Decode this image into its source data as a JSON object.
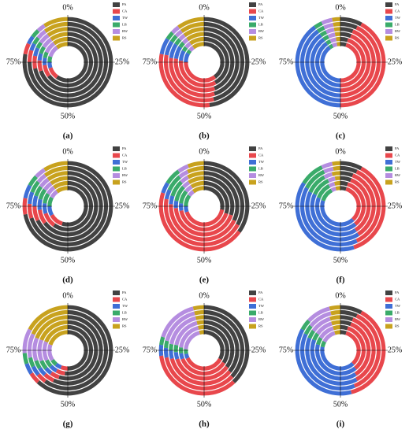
{
  "chart_data": [
    {
      "type": "radial",
      "title": "(a)",
      "anglelim": [
        0,
        100
      ],
      "angleticks": [
        {
          "value": 0,
          "label": "0%"
        },
        {
          "value": 25,
          "label": "25%"
        },
        {
          "value": 50,
          "label": "50%"
        },
        {
          "value": 75,
          "label": "75%"
        }
      ],
      "series": [
        {
          "name": "PA",
          "color": "#424242",
          "values": [
            60,
            65,
            70,
            72,
            75,
            78
          ]
        },
        {
          "name": "CA",
          "color": "#e8474c",
          "values": [
            10,
            8,
            6,
            6,
            5,
            4
          ]
        },
        {
          "name": "TW",
          "color": "#3f6fd6",
          "values": [
            5,
            5,
            4,
            4,
            3,
            3
          ]
        },
        {
          "name": "LB",
          "color": "#3aab6a",
          "values": [
            5,
            4,
            4,
            3,
            3,
            3
          ]
        },
        {
          "name": "RW",
          "color": "#b58de0",
          "values": [
            10,
            8,
            6,
            5,
            4,
            3
          ]
        },
        {
          "name": "RS",
          "color": "#c8a21e",
          "values": [
            10,
            10,
            10,
            10,
            10,
            9
          ]
        }
      ]
    },
    {
      "type": "radial",
      "title": "(b)",
      "anglelim": [
        0,
        100
      ],
      "angleticks": [
        {
          "value": 0,
          "label": "0%"
        },
        {
          "value": 25,
          "label": "25%"
        },
        {
          "value": 50,
          "label": "50%"
        },
        {
          "value": 75,
          "label": "75%"
        }
      ],
      "series": [
        {
          "name": "PA",
          "color": "#424242",
          "values": [
            40,
            42,
            44,
            45,
            46,
            48
          ]
        },
        {
          "name": "CA",
          "color": "#e8474c",
          "values": [
            35,
            34,
            33,
            32,
            32,
            30
          ]
        },
        {
          "name": "TW",
          "color": "#3f6fd6",
          "values": [
            8,
            7,
            7,
            7,
            6,
            6
          ]
        },
        {
          "name": "LB",
          "color": "#3aab6a",
          "values": [
            3,
            3,
            3,
            3,
            3,
            3
          ]
        },
        {
          "name": "RW",
          "color": "#b58de0",
          "values": [
            4,
            4,
            3,
            3,
            3,
            3
          ]
        },
        {
          "name": "RS",
          "color": "#c8a21e",
          "values": [
            10,
            10,
            10,
            10,
            10,
            10
          ]
        }
      ]
    },
    {
      "type": "radial",
      "title": "(c)",
      "anglelim": [
        0,
        100
      ],
      "angleticks": [
        {
          "value": 0,
          "label": "0%"
        },
        {
          "value": 25,
          "label": "25%"
        },
        {
          "value": 50,
          "label": "50%"
        },
        {
          "value": 75,
          "label": "75%"
        }
      ],
      "series": [
        {
          "name": "PA",
          "color": "#424242",
          "values": [
            5,
            5,
            6,
            6,
            7,
            8
          ]
        },
        {
          "name": "CA",
          "color": "#e8474c",
          "values": [
            45,
            45,
            44,
            44,
            43,
            42
          ]
        },
        {
          "name": "TW",
          "color": "#3f6fd6",
          "values": [
            40,
            40,
            40,
            40,
            40,
            40
          ]
        },
        {
          "name": "LB",
          "color": "#3aab6a",
          "values": [
            3,
            3,
            3,
            3,
            3,
            3
          ]
        },
        {
          "name": "RW",
          "color": "#b58de0",
          "values": [
            4,
            4,
            4,
            4,
            4,
            4
          ]
        },
        {
          "name": "RS",
          "color": "#c8a21e",
          "values": [
            3,
            3,
            3,
            3,
            3,
            3
          ]
        }
      ]
    },
    {
      "type": "radial",
      "title": "(d)",
      "anglelim": [
        0,
        100
      ],
      "angleticks": [
        {
          "value": 0,
          "label": "0%"
        },
        {
          "value": 25,
          "label": "25%"
        },
        {
          "value": 50,
          "label": "50%"
        },
        {
          "value": 75,
          "label": "75%"
        }
      ],
      "series": [
        {
          "name": "PA",
          "color": "#424242",
          "values": [
            55,
            60,
            65,
            68,
            70,
            72
          ]
        },
        {
          "name": "CA",
          "color": "#e8474c",
          "values": [
            12,
            10,
            8,
            7,
            6,
            6
          ]
        },
        {
          "name": "TW",
          "color": "#3f6fd6",
          "values": [
            8,
            7,
            6,
            5,
            5,
            5
          ]
        },
        {
          "name": "LB",
          "color": "#3aab6a",
          "values": [
            8,
            7,
            6,
            5,
            5,
            4
          ]
        },
        {
          "name": "RW",
          "color": "#b58de0",
          "values": [
            7,
            6,
            5,
            5,
            4,
            4
          ]
        },
        {
          "name": "RS",
          "color": "#c8a21e",
          "values": [
            10,
            10,
            10,
            10,
            10,
            9
          ]
        }
      ]
    },
    {
      "type": "radial",
      "title": "(e)",
      "anglelim": [
        0,
        100
      ],
      "angleticks": [
        {
          "value": 0,
          "label": "0%"
        },
        {
          "value": 25,
          "label": "25%"
        },
        {
          "value": 50,
          "label": "50%"
        },
        {
          "value": 75,
          "label": "75%"
        }
      ],
      "series": [
        {
          "name": "PA",
          "color": "#424242",
          "values": [
            28,
            30,
            30,
            32,
            33,
            35
          ]
        },
        {
          "name": "CA",
          "color": "#e8474c",
          "values": [
            42,
            42,
            44,
            44,
            45,
            45
          ]
        },
        {
          "name": "TW",
          "color": "#3f6fd6",
          "values": [
            5,
            5,
            4,
            4,
            4,
            4
          ]
        },
        {
          "name": "LB",
          "color": "#3aab6a",
          "values": [
            10,
            9,
            9,
            8,
            7,
            6
          ]
        },
        {
          "name": "RW",
          "color": "#b58de0",
          "values": [
            5,
            5,
            4,
            4,
            4,
            4
          ]
        },
        {
          "name": "RS",
          "color": "#c8a21e",
          "values": [
            10,
            9,
            9,
            8,
            7,
            6
          ]
        }
      ]
    },
    {
      "type": "radial",
      "title": "(f)",
      "anglelim": [
        0,
        100
      ],
      "angleticks": [
        {
          "value": 0,
          "label": "0%"
        },
        {
          "value": 25,
          "label": "25%"
        },
        {
          "value": 50,
          "label": "50%"
        },
        {
          "value": 75,
          "label": "75%"
        }
      ],
      "series": [
        {
          "name": "PA",
          "color": "#424242",
          "values": [
            5,
            5,
            6,
            6,
            7,
            8
          ]
        },
        {
          "name": "CA",
          "color": "#e8474c",
          "values": [
            33,
            34,
            35,
            35,
            36,
            37
          ]
        },
        {
          "name": "TW",
          "color": "#3f6fd6",
          "values": [
            42,
            42,
            41,
            41,
            40,
            39
          ]
        },
        {
          "name": "LB",
          "color": "#3aab6a",
          "values": [
            12,
            11,
            11,
            10,
            10,
            9
          ]
        },
        {
          "name": "RW",
          "color": "#b58de0",
          "values": [
            4,
            4,
            4,
            4,
            4,
            4
          ]
        },
        {
          "name": "RS",
          "color": "#c8a21e",
          "values": [
            4,
            4,
            3,
            4,
            3,
            3
          ]
        }
      ]
    },
    {
      "type": "radial",
      "title": "(g)",
      "anglelim": [
        0,
        100
      ],
      "angleticks": [
        {
          "value": 0,
          "label": "0%"
        },
        {
          "value": 25,
          "label": "25%"
        },
        {
          "value": 50,
          "label": "50%"
        },
        {
          "value": 75,
          "label": "75%"
        }
      ],
      "series": [
        {
          "name": "PA",
          "color": "#424242",
          "values": [
            50,
            52,
            55,
            57,
            60,
            62
          ]
        },
        {
          "name": "CA",
          "color": "#e8474c",
          "values": [
            6,
            6,
            5,
            5,
            4,
            4
          ]
        },
        {
          "name": "TW",
          "color": "#3f6fd6",
          "values": [
            5,
            5,
            4,
            4,
            4,
            4
          ]
        },
        {
          "name": "LB",
          "color": "#3aab6a",
          "values": [
            5,
            5,
            5,
            4,
            4,
            4
          ]
        },
        {
          "name": "RW",
          "color": "#b58de0",
          "values": [
            14,
            13,
            12,
            11,
            10,
            9
          ]
        },
        {
          "name": "RS",
          "color": "#c8a21e",
          "values": [
            20,
            19,
            19,
            19,
            18,
            17
          ]
        }
      ]
    },
    {
      "type": "radial",
      "title": "(h)",
      "anglelim": [
        0,
        100
      ],
      "angleticks": [
        {
          "value": 0,
          "label": "0%"
        },
        {
          "value": 25,
          "label": "25%"
        },
        {
          "value": 50,
          "label": "50%"
        },
        {
          "value": 75,
          "label": "75%"
        }
      ],
      "series": [
        {
          "name": "PA",
          "color": "#424242",
          "values": [
            33,
            34,
            35,
            36,
            37,
            38
          ]
        },
        {
          "name": "CA",
          "color": "#e8474c",
          "values": [
            35,
            35,
            35,
            35,
            35,
            35
          ]
        },
        {
          "name": "TW",
          "color": "#3f6fd6",
          "values": [
            4,
            4,
            4,
            4,
            4,
            4
          ]
        },
        {
          "name": "LB",
          "color": "#3aab6a",
          "values": [
            4,
            4,
            4,
            3,
            3,
            3
          ]
        },
        {
          "name": "RW",
          "color": "#b58de0",
          "values": [
            20,
            19,
            18,
            18,
            17,
            16
          ]
        },
        {
          "name": "RS",
          "color": "#c8a21e",
          "values": [
            4,
            4,
            4,
            4,
            4,
            4
          ]
        }
      ]
    },
    {
      "type": "radial",
      "title": "(i)",
      "anglelim": [
        0,
        100
      ],
      "angleticks": [
        {
          "value": 0,
          "label": "0%"
        },
        {
          "value": 25,
          "label": "25%"
        },
        {
          "value": 50,
          "label": "50%"
        },
        {
          "value": 75,
          "label": "75%"
        }
      ],
      "series": [
        {
          "name": "PA",
          "color": "#424242",
          "values": [
            5,
            5,
            6,
            6,
            7,
            8
          ]
        },
        {
          "name": "CA",
          "color": "#e8474c",
          "values": [
            33,
            34,
            35,
            36,
            37,
            38
          ]
        },
        {
          "name": "TW",
          "color": "#3f6fd6",
          "values": [
            40,
            40,
            40,
            39,
            38,
            37
          ]
        },
        {
          "name": "LB",
          "color": "#3aab6a",
          "values": [
            5,
            5,
            4,
            4,
            4,
            4
          ]
        },
        {
          "name": "RW",
          "color": "#b58de0",
          "values": [
            12,
            11,
            10,
            10,
            10,
            9
          ]
        },
        {
          "name": "RS",
          "color": "#c8a21e",
          "values": [
            5,
            5,
            5,
            5,
            4,
            4
          ]
        }
      ]
    }
  ]
}
